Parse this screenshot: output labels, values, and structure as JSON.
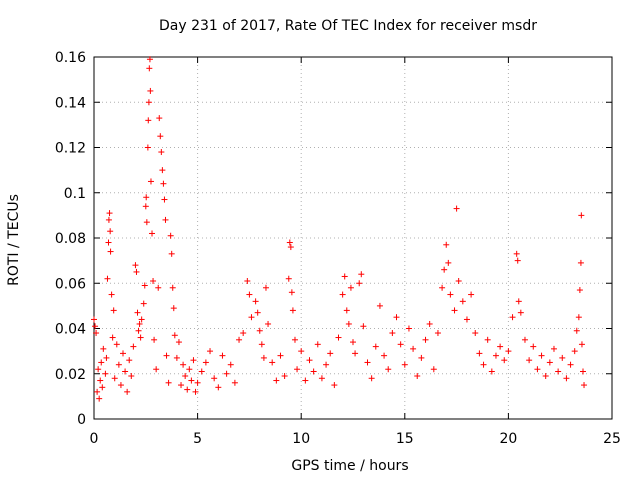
{
  "chart_data": {
    "type": "scatter",
    "title": "Day 231 of 2017, Rate Of TEC Index for receiver msdr",
    "xlabel": "GPS time / hours",
    "ylabel": "ROTI / TECUs",
    "xlim": [
      0,
      25
    ],
    "ylim": [
      0,
      0.16
    ],
    "xticks": [
      0,
      5,
      10,
      15,
      20,
      25
    ],
    "xtick_labels": [
      "0",
      "5",
      "10",
      "15",
      "20",
      "25"
    ],
    "yticks": [
      0,
      0.02,
      0.04,
      0.06,
      0.08,
      0.1,
      0.12,
      0.14,
      0.16
    ],
    "ytick_labels": [
      "0",
      "0.02",
      "0.04",
      "0.06",
      "0.08",
      "0.1",
      "0.12",
      "0.14",
      "0.16"
    ],
    "grid": true,
    "marker": "+",
    "color": "#ff0000",
    "series": [
      {
        "name": "ROTI",
        "points": [
          [
            0.0,
            0.044
          ],
          [
            0.05,
            0.041
          ],
          [
            0.1,
            0.038
          ],
          [
            0.15,
            0.012
          ],
          [
            0.2,
            0.022
          ],
          [
            0.25,
            0.009
          ],
          [
            0.3,
            0.017
          ],
          [
            0.35,
            0.025
          ],
          [
            0.4,
            0.014
          ],
          [
            0.45,
            0.031
          ],
          [
            0.55,
            0.02
          ],
          [
            0.6,
            0.027
          ],
          [
            0.65,
            0.062
          ],
          [
            0.7,
            0.078
          ],
          [
            0.72,
            0.088
          ],
          [
            0.75,
            0.091
          ],
          [
            0.78,
            0.083
          ],
          [
            0.8,
            0.074
          ],
          [
            0.85,
            0.055
          ],
          [
            0.9,
            0.036
          ],
          [
            0.95,
            0.048
          ],
          [
            1.0,
            0.018
          ],
          [
            1.1,
            0.033
          ],
          [
            1.2,
            0.024
          ],
          [
            1.3,
            0.015
          ],
          [
            1.4,
            0.029
          ],
          [
            1.5,
            0.021
          ],
          [
            1.6,
            0.012
          ],
          [
            1.7,
            0.026
          ],
          [
            1.8,
            0.019
          ],
          [
            1.9,
            0.032
          ],
          [
            2.0,
            0.068
          ],
          [
            2.05,
            0.065
          ],
          [
            2.1,
            0.047
          ],
          [
            2.15,
            0.039
          ],
          [
            2.2,
            0.042
          ],
          [
            2.25,
            0.036
          ],
          [
            2.3,
            0.044
          ],
          [
            2.4,
            0.051
          ],
          [
            2.45,
            0.059
          ],
          [
            2.5,
            0.094
          ],
          [
            2.52,
            0.098
          ],
          [
            2.55,
            0.087
          ],
          [
            2.6,
            0.12
          ],
          [
            2.62,
            0.132
          ],
          [
            2.65,
            0.14
          ],
          [
            2.67,
            0.155
          ],
          [
            2.7,
            0.159
          ],
          [
            2.72,
            0.145
          ],
          [
            2.75,
            0.105
          ],
          [
            2.8,
            0.082
          ],
          [
            2.85,
            0.061
          ],
          [
            2.9,
            0.035
          ],
          [
            3.0,
            0.022
          ],
          [
            3.1,
            0.058
          ],
          [
            3.15,
            0.133
          ],
          [
            3.2,
            0.125
          ],
          [
            3.25,
            0.118
          ],
          [
            3.3,
            0.11
          ],
          [
            3.35,
            0.104
          ],
          [
            3.4,
            0.097
          ],
          [
            3.45,
            0.088
          ],
          [
            3.5,
            0.028
          ],
          [
            3.6,
            0.016
          ],
          [
            3.7,
            0.081
          ],
          [
            3.75,
            0.073
          ],
          [
            3.8,
            0.058
          ],
          [
            3.85,
            0.049
          ],
          [
            3.9,
            0.037
          ],
          [
            4.0,
            0.027
          ],
          [
            4.1,
            0.034
          ],
          [
            4.2,
            0.015
          ],
          [
            4.3,
            0.024
          ],
          [
            4.4,
            0.019
          ],
          [
            4.5,
            0.013
          ],
          [
            4.6,
            0.022
          ],
          [
            4.7,
            0.017
          ],
          [
            4.8,
            0.026
          ],
          [
            4.9,
            0.012
          ],
          [
            5.0,
            0.016
          ],
          [
            5.2,
            0.021
          ],
          [
            5.4,
            0.025
          ],
          [
            5.6,
            0.03
          ],
          [
            5.8,
            0.018
          ],
          [
            6.0,
            0.014
          ],
          [
            6.2,
            0.028
          ],
          [
            6.4,
            0.02
          ],
          [
            6.6,
            0.024
          ],
          [
            6.8,
            0.016
          ],
          [
            7.0,
            0.035
          ],
          [
            7.2,
            0.038
          ],
          [
            7.4,
            0.061
          ],
          [
            7.5,
            0.055
          ],
          [
            7.6,
            0.045
          ],
          [
            7.8,
            0.052
          ],
          [
            7.9,
            0.047
          ],
          [
            8.0,
            0.039
          ],
          [
            8.1,
            0.033
          ],
          [
            8.2,
            0.027
          ],
          [
            8.3,
            0.058
          ],
          [
            8.4,
            0.042
          ],
          [
            8.6,
            0.025
          ],
          [
            8.8,
            0.017
          ],
          [
            9.0,
            0.028
          ],
          [
            9.2,
            0.019
          ],
          [
            9.4,
            0.062
          ],
          [
            9.45,
            0.078
          ],
          [
            9.5,
            0.076
          ],
          [
            9.55,
            0.056
          ],
          [
            9.6,
            0.048
          ],
          [
            9.7,
            0.035
          ],
          [
            9.8,
            0.022
          ],
          [
            10.0,
            0.03
          ],
          [
            10.2,
            0.017
          ],
          [
            10.4,
            0.026
          ],
          [
            10.6,
            0.021
          ],
          [
            10.8,
            0.033
          ],
          [
            11.0,
            0.018
          ],
          [
            11.2,
            0.024
          ],
          [
            11.4,
            0.029
          ],
          [
            11.6,
            0.015
          ],
          [
            11.8,
            0.036
          ],
          [
            12.0,
            0.055
          ],
          [
            12.1,
            0.063
          ],
          [
            12.2,
            0.048
          ],
          [
            12.3,
            0.042
          ],
          [
            12.4,
            0.058
          ],
          [
            12.5,
            0.034
          ],
          [
            12.6,
            0.029
          ],
          [
            12.8,
            0.06
          ],
          [
            12.9,
            0.064
          ],
          [
            13.0,
            0.041
          ],
          [
            13.2,
            0.025
          ],
          [
            13.4,
            0.018
          ],
          [
            13.6,
            0.032
          ],
          [
            13.8,
            0.05
          ],
          [
            14.0,
            0.028
          ],
          [
            14.2,
            0.022
          ],
          [
            14.4,
            0.038
          ],
          [
            14.6,
            0.045
          ],
          [
            14.8,
            0.033
          ],
          [
            15.0,
            0.024
          ],
          [
            15.2,
            0.04
          ],
          [
            15.4,
            0.031
          ],
          [
            15.6,
            0.019
          ],
          [
            15.8,
            0.027
          ],
          [
            16.0,
            0.035
          ],
          [
            16.2,
            0.042
          ],
          [
            16.4,
            0.022
          ],
          [
            16.6,
            0.038
          ],
          [
            16.8,
            0.058
          ],
          [
            16.9,
            0.066
          ],
          [
            17.0,
            0.077
          ],
          [
            17.1,
            0.069
          ],
          [
            17.2,
            0.055
          ],
          [
            17.4,
            0.048
          ],
          [
            17.5,
            0.093
          ],
          [
            17.6,
            0.061
          ],
          [
            17.8,
            0.052
          ],
          [
            18.0,
            0.044
          ],
          [
            18.2,
            0.055
          ],
          [
            18.4,
            0.038
          ],
          [
            18.6,
            0.029
          ],
          [
            18.8,
            0.024
          ],
          [
            19.0,
            0.035
          ],
          [
            19.2,
            0.021
          ],
          [
            19.4,
            0.028
          ],
          [
            19.6,
            0.032
          ],
          [
            19.8,
            0.026
          ],
          [
            20.0,
            0.03
          ],
          [
            20.2,
            0.045
          ],
          [
            20.4,
            0.073
          ],
          [
            20.45,
            0.07
          ],
          [
            20.5,
            0.052
          ],
          [
            20.6,
            0.047
          ],
          [
            20.8,
            0.035
          ],
          [
            21.0,
            0.026
          ],
          [
            21.2,
            0.032
          ],
          [
            21.4,
            0.022
          ],
          [
            21.6,
            0.028
          ],
          [
            21.8,
            0.019
          ],
          [
            22.0,
            0.025
          ],
          [
            22.2,
            0.031
          ],
          [
            22.4,
            0.021
          ],
          [
            22.6,
            0.027
          ],
          [
            22.8,
            0.018
          ],
          [
            23.0,
            0.024
          ],
          [
            23.2,
            0.03
          ],
          [
            23.3,
            0.039
          ],
          [
            23.4,
            0.045
          ],
          [
            23.45,
            0.057
          ],
          [
            23.5,
            0.069
          ],
          [
            23.52,
            0.09
          ],
          [
            23.55,
            0.033
          ],
          [
            23.6,
            0.021
          ],
          [
            23.65,
            0.015
          ]
        ]
      }
    ]
  }
}
